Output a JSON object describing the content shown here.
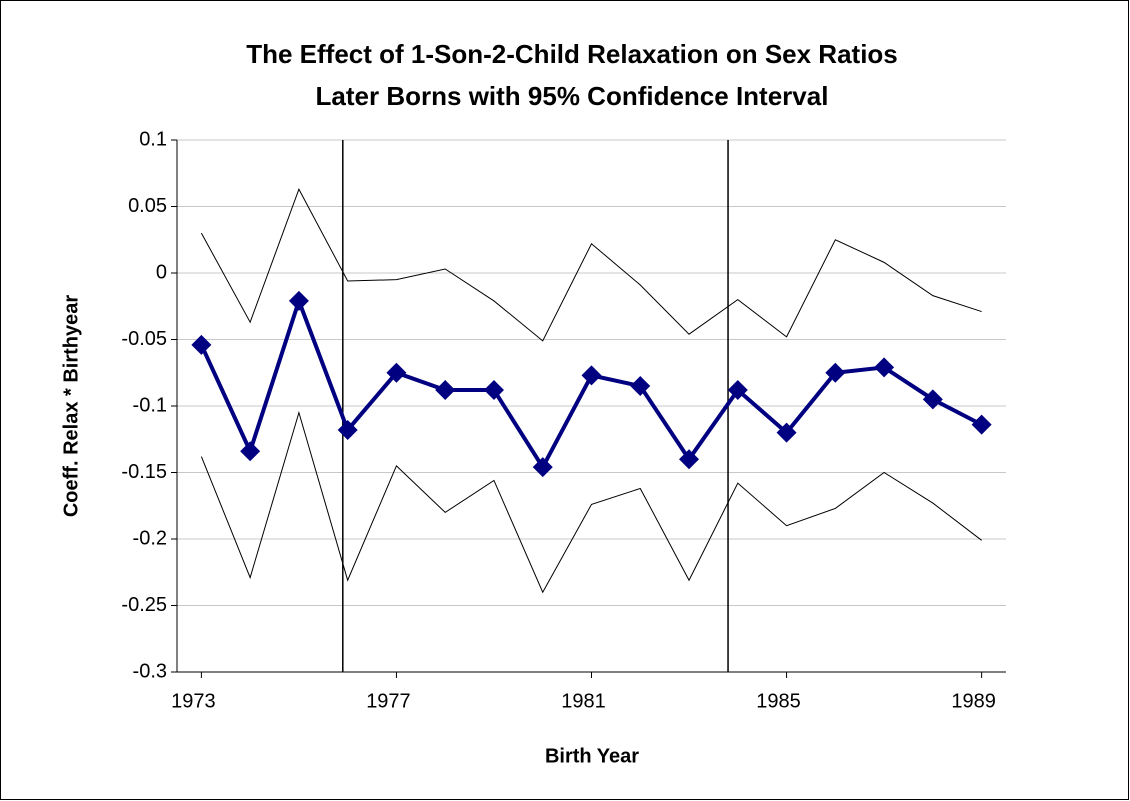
{
  "chart_data": {
    "type": "line",
    "title": "The Effect of 1-Son-2-Child Relaxation on Sex Ratios",
    "subtitle": "Later Borns with 95% Confidence Interval",
    "x_label": "Birth Year",
    "y_label": "Coeff. Relax * Birthyear",
    "x": [
      1973,
      1974,
      1975,
      1976,
      1977,
      1978,
      1979,
      1980,
      1981,
      1982,
      1983,
      1984,
      1985,
      1986,
      1987,
      1988,
      1989
    ],
    "series": [
      {
        "color": "#000000",
        "values": [
          0.03,
          -0.037,
          0.063,
          -0.006,
          -0.005,
          0.003,
          -0.021,
          -0.051,
          0.022,
          -0.009,
          -0.046,
          -0.02,
          -0.048,
          0.025,
          0.008,
          -0.017,
          -0.029
        ]
      },
      {
        "color": "#000000",
        "values": [
          -0.138,
          -0.229,
          -0.105,
          -0.231,
          -0.145,
          -0.18,
          -0.156,
          -0.24,
          -0.174,
          -0.162,
          -0.231,
          -0.158,
          -0.19,
          -0.177,
          -0.15,
          -0.173,
          -0.201
        ]
      },
      {
        "color": "#000080",
        "values": [
          -0.054,
          -0.134,
          -0.021,
          -0.118,
          -0.075,
          -0.088,
          -0.088,
          -0.146,
          -0.077,
          -0.085,
          -0.14,
          -0.088,
          -0.12,
          -0.075,
          -0.071,
          -0.095,
          -0.114
        ]
      }
    ],
    "vlines": [
      1975.9,
      1983.8
    ],
    "xlim": [
      1972.5,
      1989.5
    ],
    "xticks": [
      1973,
      1977,
      1981,
      1985,
      1989
    ],
    "ylim": [
      -0.3,
      0.1
    ],
    "yticks": [
      -0.3,
      -0.25,
      -0.2,
      -0.15,
      -0.1,
      -0.05,
      0,
      0.05,
      0.1
    ],
    "grid": true
  }
}
